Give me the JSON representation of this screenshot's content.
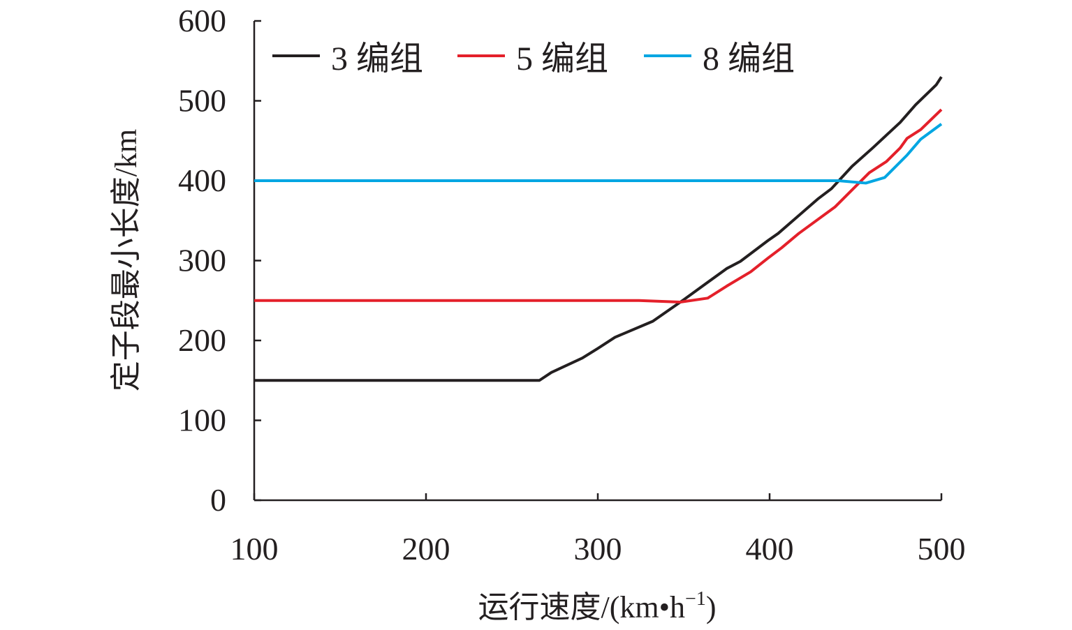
{
  "chart_data": {
    "type": "line",
    "title": "",
    "xlabel": "运行速度/(km•h",
    "xlabel_sup": "−1",
    "xlabel_close": ")",
    "ylabel": "定子段最小长度/km",
    "xlim": [
      100,
      500
    ],
    "ylim": [
      0,
      600
    ],
    "xticks": [
      100,
      200,
      300,
      400,
      500
    ],
    "yticks": [
      0,
      100,
      200,
      300,
      400,
      500,
      600
    ],
    "grid": false,
    "legend_position": "top",
    "series": [
      {
        "name": "3 编组",
        "color": "#231f20",
        "x": [
          100,
          266,
          273,
          291,
          300,
          310,
          332,
          350,
          375,
          383,
          399,
          405,
          428,
          436,
          448,
          460,
          476,
          485,
          497,
          500
        ],
        "y": [
          150,
          150,
          160,
          178,
          190,
          204,
          224,
          251,
          290,
          299,
          325,
          334,
          377,
          390,
          418,
          441,
          473,
          495,
          520,
          530
        ]
      },
      {
        "name": "5 编组",
        "color": "#e4202a",
        "x": [
          100,
          324,
          348,
          364,
          375,
          389,
          399,
          407,
          417,
          438,
          458,
          468,
          476,
          480,
          488,
          500
        ],
        "y": [
          250,
          250,
          248,
          253,
          268,
          286,
          303,
          316,
          334,
          367,
          410,
          424,
          441,
          453,
          464,
          489
        ]
      },
      {
        "name": "8 编组",
        "color": "#00a6e2",
        "x": [
          100,
          440,
          456,
          467,
          480,
          488,
          500
        ],
        "y": [
          400,
          400,
          397,
          404,
          432,
          452,
          471
        ]
      }
    ]
  }
}
